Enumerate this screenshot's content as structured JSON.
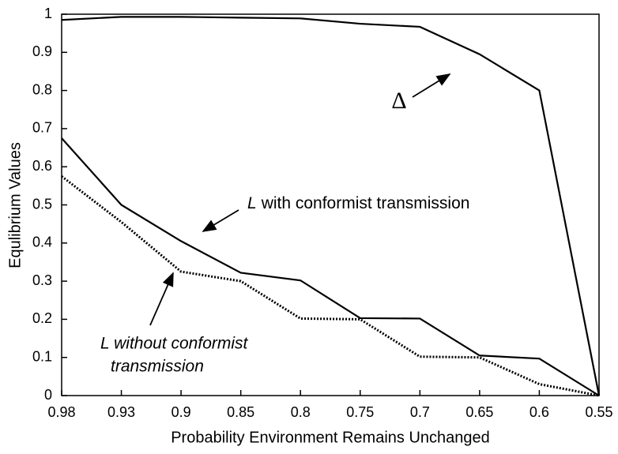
{
  "chart_data": {
    "type": "line",
    "x_label": "Probability Environment Remains Unchanged",
    "y_label": "Equlibrium Values",
    "categories": [
      "0.98",
      "0.93",
      "0.9",
      "0.85",
      "0.8",
      "0.75",
      "0.7",
      "0.65",
      "0.6",
      "0.55"
    ],
    "series": [
      {
        "name": "Δ",
        "color": "#000000",
        "style": "solid",
        "values": [
          0.985,
          0.993,
          0.993,
          0.991,
          0.989,
          0.975,
          0.967,
          0.895,
          0.8,
          0
        ]
      },
      {
        "name": "L with conformist transmission",
        "color": "#000000",
        "style": "solid",
        "values": [
          0.675,
          0.5,
          0.405,
          0.322,
          0.302,
          0.203,
          0.202,
          0.105,
          0.097,
          0
        ]
      },
      {
        "name": "L without conformist transmission",
        "color": "#000000",
        "style": "dotted",
        "values": [
          0.575,
          0.455,
          0.325,
          0.3,
          0.202,
          0.2,
          0.102,
          0.1,
          0.03,
          0
        ]
      }
    ],
    "ylim": [
      0,
      1
    ],
    "yticks": [
      0,
      0.1,
      0.2,
      0.3,
      0.4,
      0.5,
      0.6,
      0.7,
      0.8,
      0.9,
      1
    ],
    "annotations": [
      {
        "lines": [
          "Δ"
        ]
      },
      {
        "italic_prefix": "L",
        "text": "with conformist transmission"
      },
      {
        "lines": [
          "L without conformist",
          "transmission"
        ]
      }
    ]
  }
}
